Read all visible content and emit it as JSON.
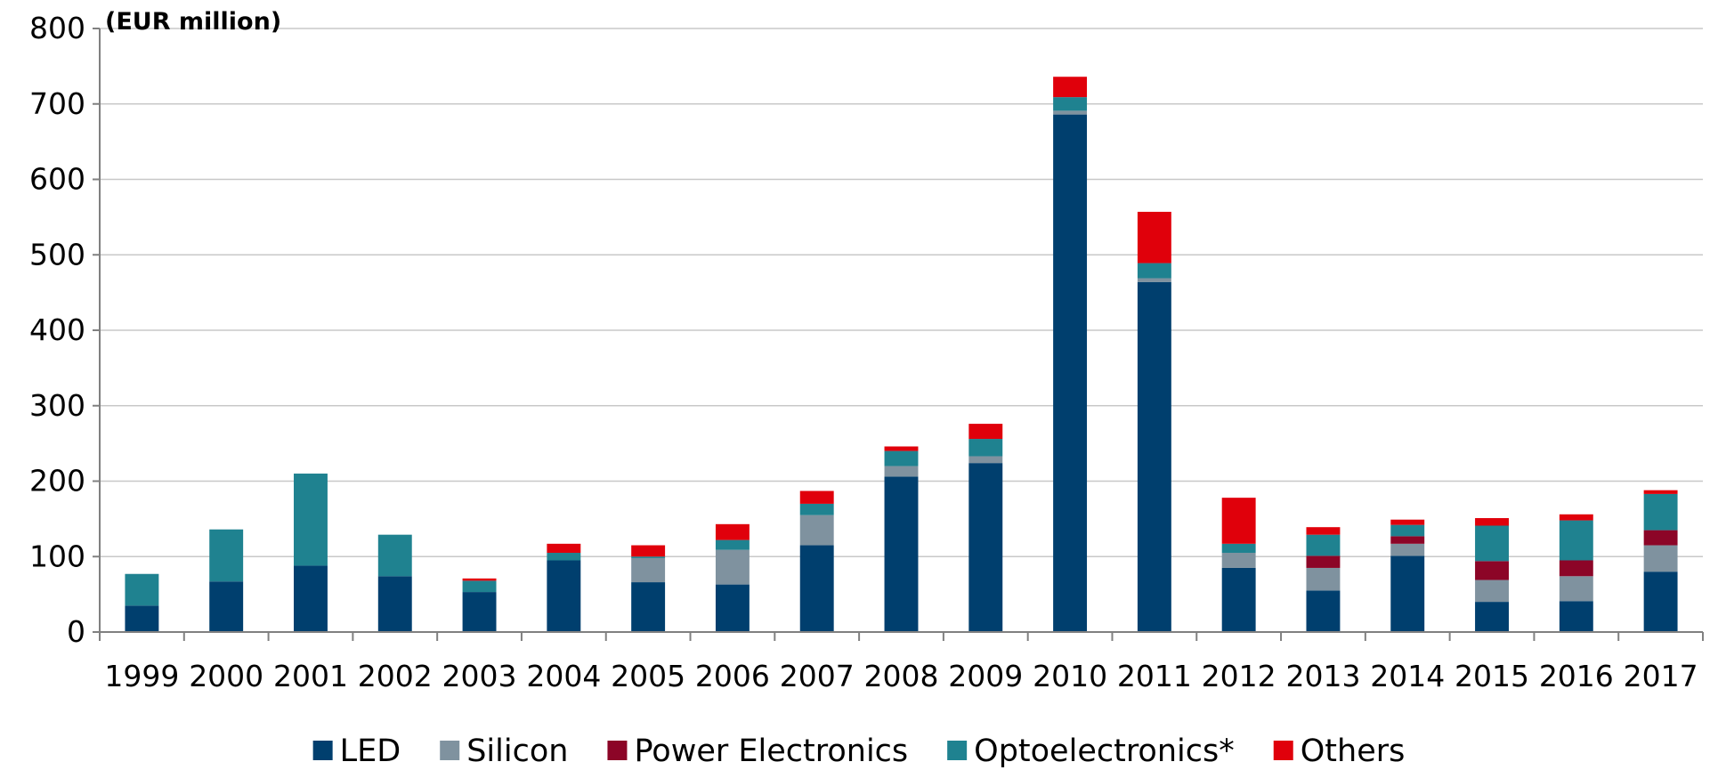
{
  "chart_data": {
    "type": "bar",
    "stacked": true,
    "unit_label": "(EUR million)",
    "categories": [
      "1999",
      "2000",
      "2001",
      "2002",
      "2003",
      "2004",
      "2005",
      "2006",
      "2007",
      "2008",
      "2009",
      "2010",
      "2011",
      "2012",
      "2013",
      "2014",
      "2015",
      "2016",
      "2017"
    ],
    "ylim": [
      0,
      800
    ],
    "yticks": [
      0,
      100,
      200,
      300,
      400,
      500,
      600,
      700,
      800
    ],
    "grid": true,
    "legend_position": "bottom",
    "series": [
      {
        "name": "LED",
        "color": "#003f6e",
        "values": [
          35,
          67,
          88,
          74,
          53,
          95,
          66,
          63,
          115,
          206,
          224,
          686,
          464,
          85,
          55,
          101,
          40,
          41,
          80
        ]
      },
      {
        "name": "Silicon",
        "color": "#7f929f",
        "values": [
          0,
          0,
          0,
          0,
          0,
          0,
          32,
          46,
          40,
          14,
          9,
          5,
          5,
          20,
          30,
          16,
          29,
          33,
          35
        ]
      },
      {
        "name": "Power Electronics",
        "color": "#8c0527",
        "values": [
          0,
          0,
          0,
          0,
          0,
          0,
          0,
          0,
          0,
          0,
          0,
          0,
          0,
          0,
          16,
          10,
          25,
          21,
          20
        ]
      },
      {
        "name": "Optoelectronics*",
        "color": "#1f8290",
        "values": [
          42,
          69,
          122,
          55,
          15,
          10,
          2,
          13,
          15,
          20,
          23,
          18,
          20,
          12,
          28,
          15,
          47,
          53,
          48
        ]
      },
      {
        "name": "Others",
        "color": "#e0000b",
        "values": [
          0,
          0,
          0,
          0,
          3,
          12,
          15,
          21,
          17,
          6,
          20,
          27,
          68,
          61,
          10,
          7,
          10,
          8,
          5
        ]
      }
    ]
  }
}
